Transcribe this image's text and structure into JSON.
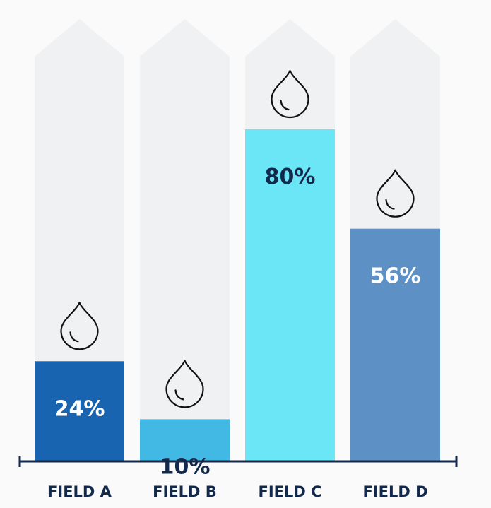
{
  "chart_data": {
    "type": "bar",
    "categories": [
      "FIELD A",
      "FIELD B",
      "FIELD C",
      "FIELD D"
    ],
    "values": [
      24,
      10,
      80,
      56
    ],
    "value_labels": [
      "24%",
      "10%",
      "80%",
      "56%"
    ],
    "unit": "%",
    "ylim": [
      0,
      100
    ],
    "title": "",
    "xlabel": "",
    "ylabel": "",
    "grid": false,
    "bar_colors": [
      "#1864b1",
      "#42b9e5",
      "#6be6f7",
      "#5d91c6"
    ],
    "label_colors": [
      "#ffffff",
      "#13294b",
      "#13294b",
      "#ffffff"
    ],
    "track_color": "#f0f1f3",
    "axis_color": "#13294b",
    "category_label_color": "#13294b",
    "marker_icon": "water-drop-icon"
  }
}
